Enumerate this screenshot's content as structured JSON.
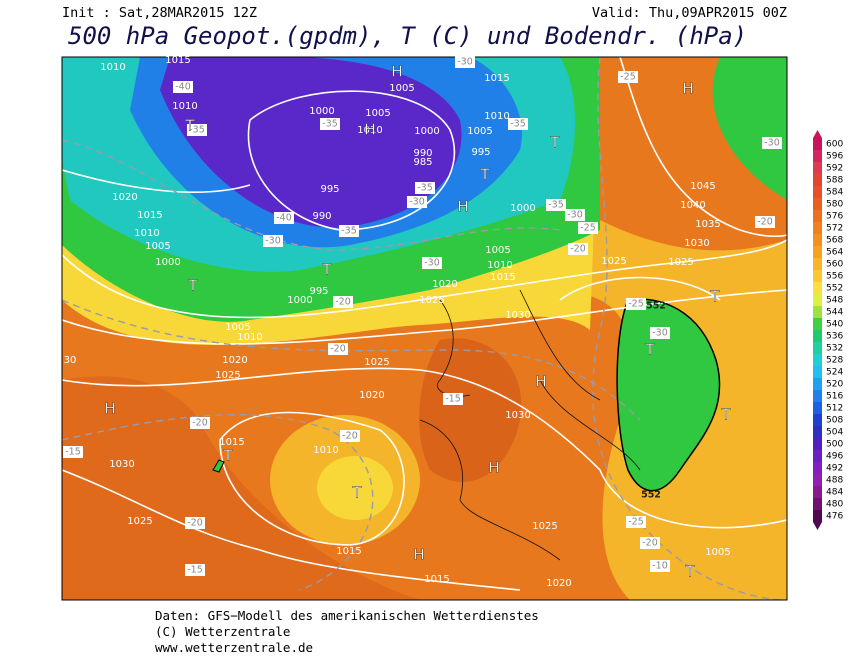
{
  "header": {
    "init": "Init : Sat,28MAR2015 12Z",
    "valid": "Valid: Thu,09APR2015 00Z",
    "title": "500 hPa Geopot.(gpdm), T (C) und Bodendr. (hPa)"
  },
  "map": {
    "pressure_labels": [
      1010,
      1015,
      1010,
      1020,
      1015,
      1010,
      1005,
      1000,
      1000,
      1005,
      1010,
      1000,
      1005,
      1015,
      1010,
      1005,
      995,
      990,
      985,
      995,
      990,
      995,
      1000,
      1005,
      1010,
      1015,
      1020,
      1025,
      1030,
      1000,
      1045,
      1040,
      1035,
      1030,
      1025,
      1025,
      1020,
      1025,
      1025,
      1020,
      1030,
      1015,
      1010,
      1030,
      1025,
      1015,
      1015,
      1020,
      1025,
      1005,
      1010,
      1005,
      30
    ],
    "temperature_labels": [
      -40,
      -35,
      -35,
      -35,
      -35,
      -30,
      -40,
      -35,
      -30,
      -30,
      -35,
      -30,
      -25,
      -20,
      -25,
      -30,
      -20,
      -25,
      -30,
      -20,
      -15,
      -20,
      -20,
      -15,
      -20,
      -15,
      -25,
      -20,
      -10,
      -30,
      -20
    ],
    "contour_labels": [
      552,
      552
    ],
    "centers": [
      "H",
      "T",
      "H",
      "T",
      "T",
      "H",
      "T",
      "T",
      "H",
      "T",
      "T",
      "H",
      "T",
      "H",
      "T",
      "T",
      "H",
      "H",
      "T"
    ]
  },
  "colorbar": {
    "labels": [
      600,
      596,
      592,
      588,
      584,
      580,
      576,
      572,
      568,
      564,
      560,
      556,
      552,
      548,
      544,
      540,
      536,
      532,
      528,
      524,
      520,
      516,
      512,
      508,
      504,
      500,
      496,
      492,
      488,
      484,
      480,
      476
    ],
    "colors": [
      "#c8145a",
      "#d2285f",
      "#dc3c50",
      "#e04632",
      "#e6502a",
      "#e86020",
      "#ec7020",
      "#f08020",
      "#f49020",
      "#f8a020",
      "#fab428",
      "#fcc830",
      "#f8e040",
      "#e0f040",
      "#a0e040",
      "#40d040",
      "#20c870",
      "#20d0a0",
      "#20d0d0",
      "#20c0f0",
      "#20a0f0",
      "#2080f0",
      "#2060e0",
      "#2040d0",
      "#3030c0",
      "#5020c0",
      "#6a20c0",
      "#8020c0",
      "#9020b0",
      "#8a1890",
      "#701070",
      "#500850"
    ]
  },
  "footer": {
    "source": "Daten: GFS−Modell des amerikanischen Wetterdienstes",
    "copyright": "(C) Wetterzentrale",
    "url": "www.wetterzentrale.de"
  }
}
